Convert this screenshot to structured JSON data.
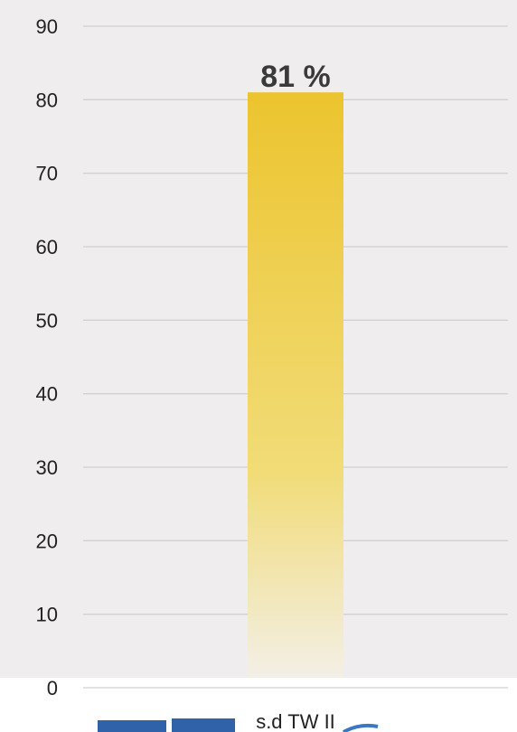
{
  "chart_data": {
    "type": "bar",
    "categories": [
      "s.d TW II"
    ],
    "values": [
      81
    ],
    "data_labels": [
      "81 %"
    ],
    "ylim": [
      0,
      90
    ],
    "yticks": [
      "0",
      "10",
      "20",
      "30",
      "40",
      "50",
      "60",
      "70",
      "80",
      "90"
    ],
    "grid": true,
    "legend": "none",
    "title": "",
    "xlabel": "",
    "ylabel": ""
  },
  "colors": {
    "plot_background": "#efedee",
    "gridline": "#d2d0d0",
    "bar_top": "#ecc42e",
    "bar_mid": "#f1dc78",
    "bar_bottom": "#f3efe6",
    "footer_decoration": "#2f62a8"
  }
}
